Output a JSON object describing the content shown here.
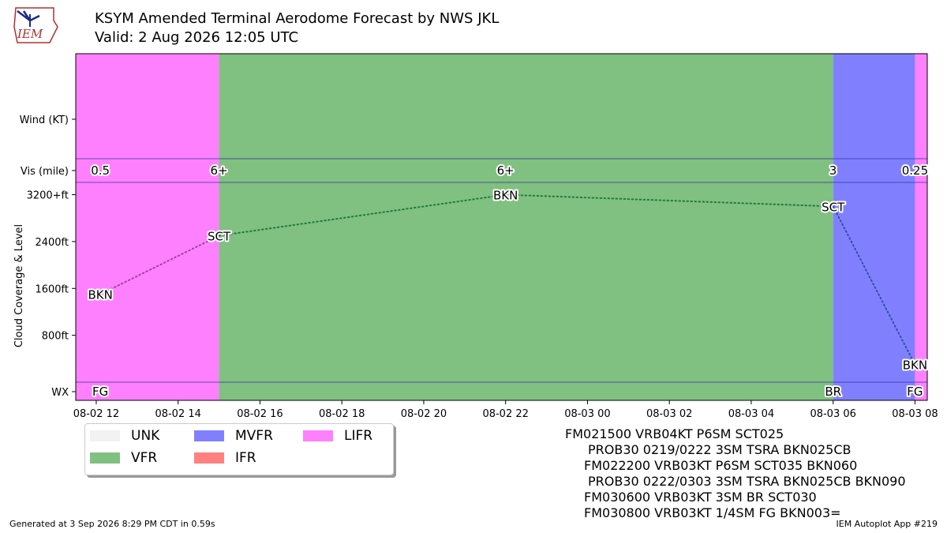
{
  "header": {
    "logo_text": "IEM",
    "title_line1": "KSYM Amended Terminal Aerodome Forecast by NWS JKL",
    "title_line2": "Valid: 2 Aug 2026 12:05 UTC"
  },
  "chart_data": {
    "type": "timeline",
    "x_ticks": [
      "08-02 12",
      "08-02 14",
      "08-02 16",
      "08-02 18",
      "08-02 20",
      "08-02 22",
      "08-03 00",
      "08-03 02",
      "08-03 04",
      "08-03 06",
      "08-03 08"
    ],
    "x_range_hours": [
      11.5,
      32.3
    ],
    "y_tick_labels": {
      "wind": "Wind (KT)",
      "vis": "Vis (mile)",
      "cloud": [
        "3200+ft",
        "2400ft",
        "1600ft",
        "800ft"
      ],
      "wx": "WX"
    },
    "y_axis_label": "Cloud Coverage & Level",
    "category_colors": {
      "UNK": "#f2f2f2",
      "VFR": "#80c080",
      "MVFR": "#8080ff",
      "IFR": "#ff8080",
      "LIFR": "#ff80ff"
    },
    "periods": [
      {
        "start": 11.5,
        "end": 15.0,
        "category": "LIFR"
      },
      {
        "start": 15.0,
        "end": 30.0,
        "category": "VFR"
      },
      {
        "start": 30.0,
        "end": 32.0,
        "category": "MVFR"
      },
      {
        "start": 32.0,
        "end": 33.0,
        "category": "LIFR"
      }
    ],
    "visibility": [
      {
        "x": 12.1,
        "label": "0.5"
      },
      {
        "x": 15.0,
        "label": "6+"
      },
      {
        "x": 22.0,
        "label": "6+"
      },
      {
        "x": 30.0,
        "label": "3"
      },
      {
        "x": 32.0,
        "label": "0.25"
      }
    ],
    "clouds": [
      {
        "x": 12.1,
        "level_ft": 1500,
        "label": "BKN"
      },
      {
        "x": 15.0,
        "level_ft": 2500,
        "label": "SCT"
      },
      {
        "x": 22.0,
        "level_ft": 3200,
        "label": "BKN"
      },
      {
        "x": 30.0,
        "level_ft": 3000,
        "label": "SCT"
      },
      {
        "x": 32.0,
        "level_ft": 300,
        "label": "BKN"
      }
    ],
    "weather": [
      {
        "x": 12.1,
        "label": "FG"
      },
      {
        "x": 30.0,
        "label": "BR"
      },
      {
        "x": 32.0,
        "label": "FG"
      }
    ]
  },
  "legend": {
    "items": [
      {
        "label": "UNK",
        "key": "UNK"
      },
      {
        "label": "VFR",
        "key": "VFR"
      },
      {
        "label": "MVFR",
        "key": "MVFR"
      },
      {
        "label": "IFR",
        "key": "IFR"
      },
      {
        "label": "LIFR",
        "key": "LIFR"
      }
    ]
  },
  "raw_taf": [
    "FM021500 VRB04KT P6SM SCT025",
    "PROB30 0219/0222 3SM TSRA BKN025CB",
    "FM022200 VRB03KT P6SM SCT035 BKN060",
    "PROB30 0222/0303 3SM TSRA BKN025CB BKN090",
    "FM030600 VRB03KT 3SM BR SCT030",
    "FM030800 VRB03KT 1/4SM FG BKN003="
  ],
  "footer": {
    "generated": "Generated at 3 Sep 2026 8:29 PM CDT in 0.59s",
    "app": "IEM Autoplot App #219"
  }
}
